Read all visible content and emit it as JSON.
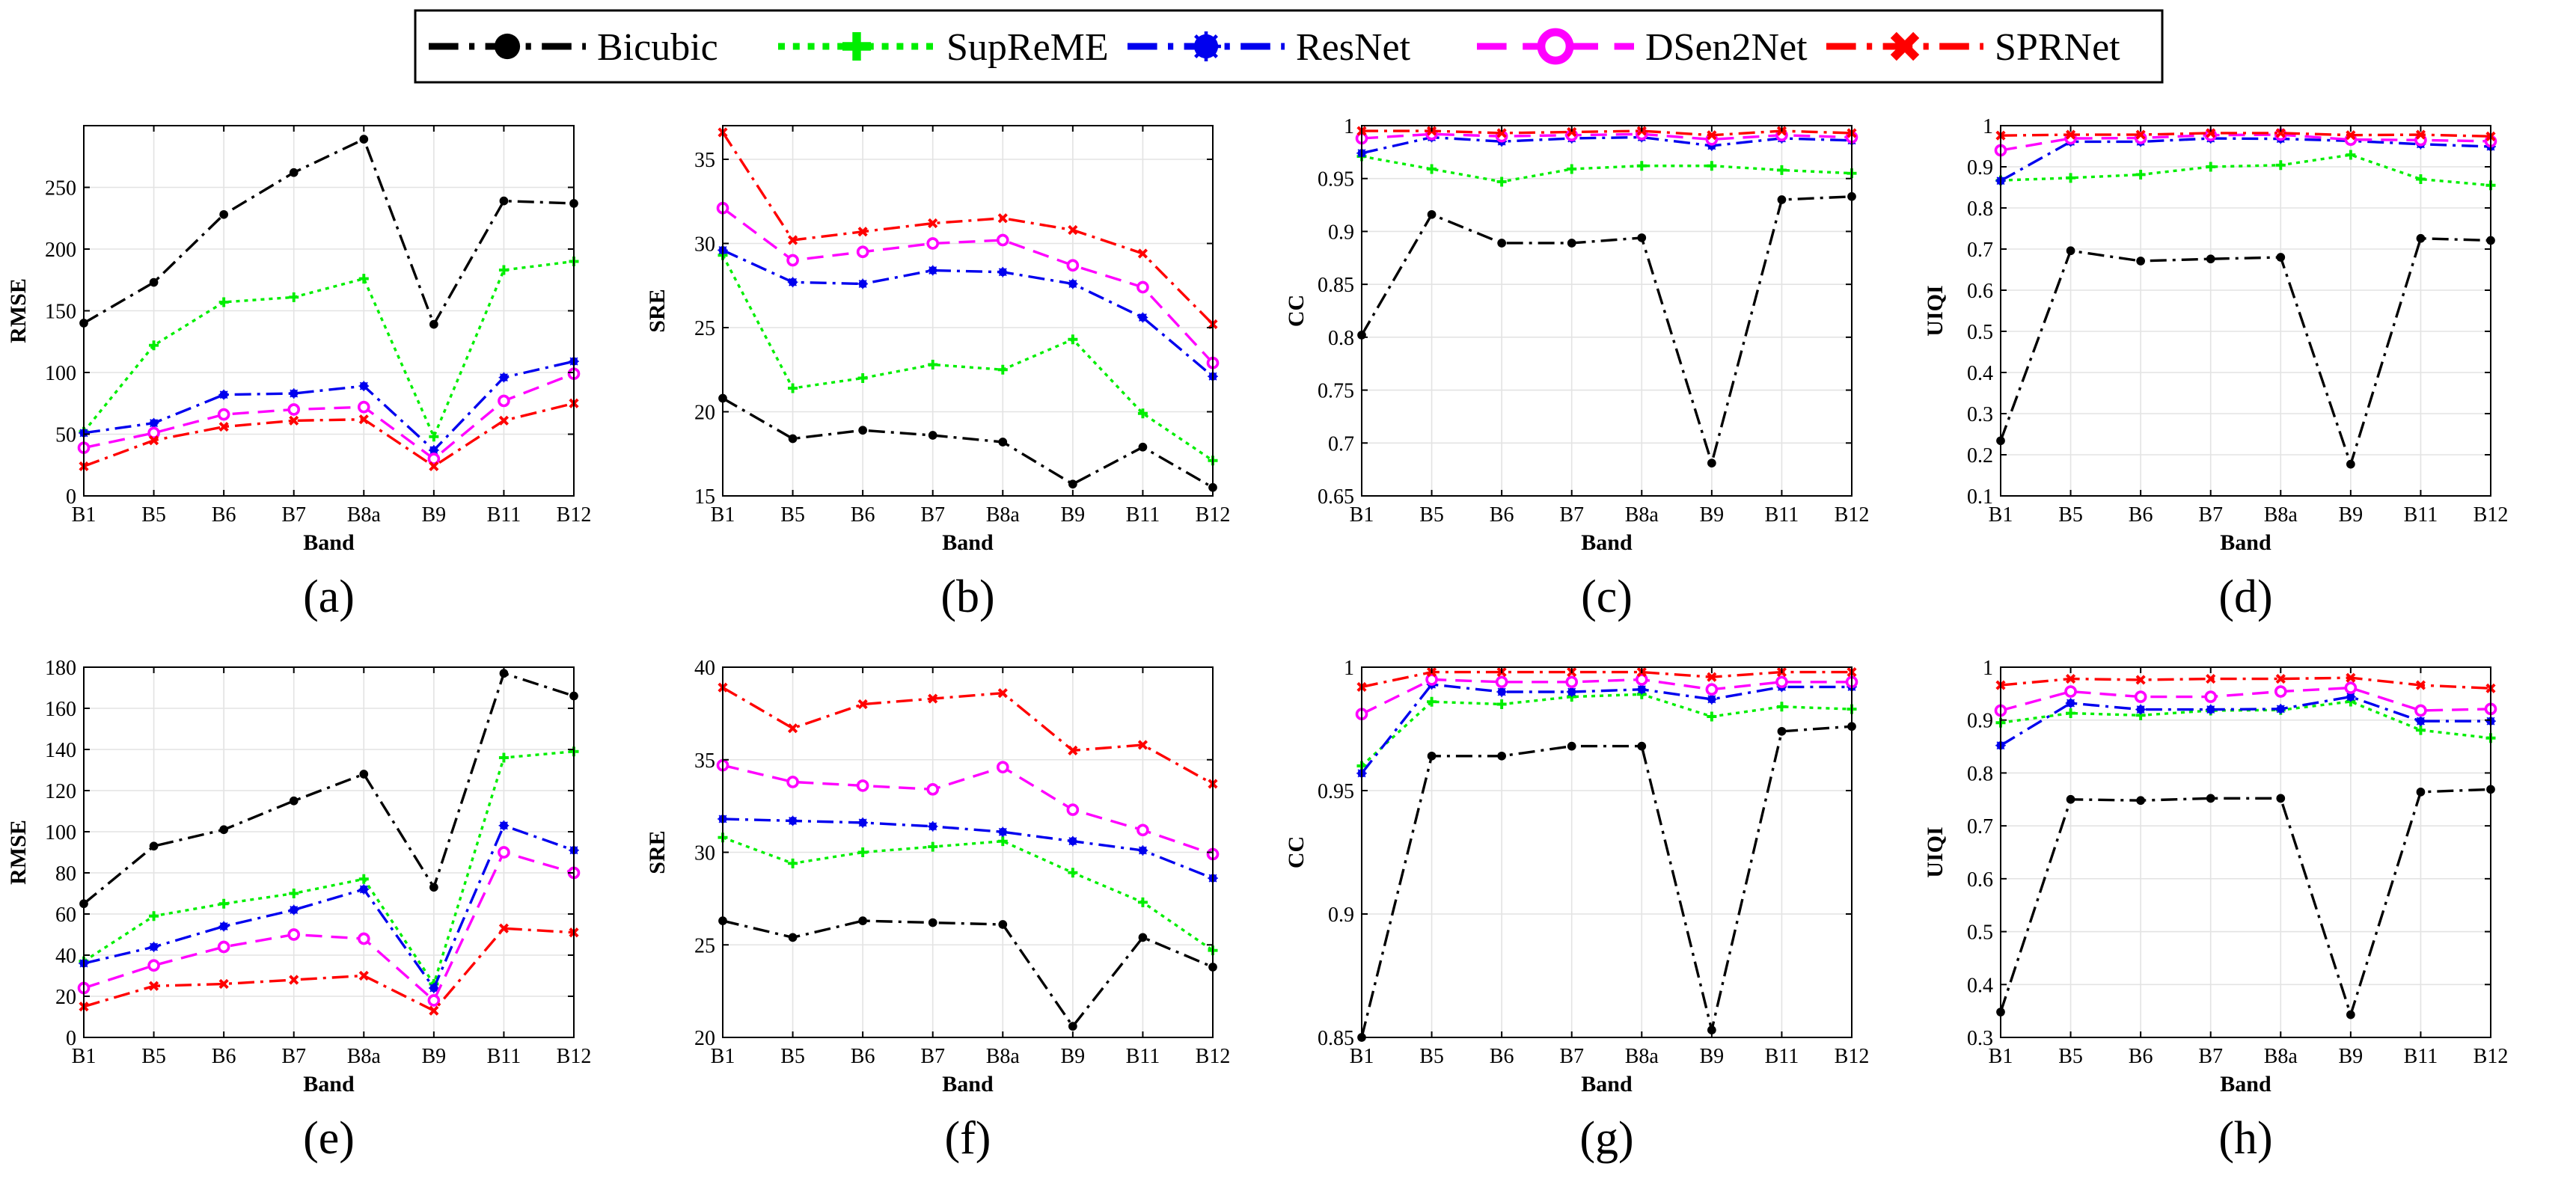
{
  "legend": {
    "position": "top-center",
    "entries": [
      {
        "name": "Bicubic",
        "color": "#000000",
        "dash": "dash-dot",
        "marker": "filled-circle"
      },
      {
        "name": "SupReME",
        "color": "#00ee00",
        "dash": "dotted",
        "marker": "plus"
      },
      {
        "name": "ResNet",
        "color": "#0000ee",
        "dash": "dash-dot",
        "marker": "asterisk-circle"
      },
      {
        "name": "DSen2Net",
        "color": "#ff00ff",
        "dash": "dashed",
        "marker": "open-circle"
      },
      {
        "name": "SPRNet",
        "color": "#ff0000",
        "dash": "dash-dot",
        "marker": "x"
      }
    ]
  },
  "chart_data": [
    {
      "panel": "(a)",
      "type": "line",
      "xlabel": "Band",
      "ylabel": "RMSE",
      "categories": [
        "B1",
        "B5",
        "B6",
        "B7",
        "B8a",
        "B9",
        "B11",
        "B12"
      ],
      "ylim": [
        0,
        300
      ],
      "yticks": [
        0,
        50,
        100,
        150,
        200,
        250
      ],
      "ytick_labels": [
        "0",
        "50",
        "100",
        "150",
        "200",
        "250"
      ],
      "grid": true,
      "series": [
        {
          "name": "Bicubic",
          "values": [
            140,
            173,
            228,
            262,
            289,
            139,
            239,
            237
          ]
        },
        {
          "name": "SupReME",
          "values": [
            52,
            122,
            157,
            161,
            176,
            48,
            183,
            190
          ]
        },
        {
          "name": "ResNet",
          "values": [
            51,
            59,
            82,
            83,
            89,
            37,
            96,
            109
          ]
        },
        {
          "name": "DSen2Net",
          "values": [
            39,
            51,
            66,
            70,
            72,
            30,
            77,
            99
          ]
        },
        {
          "name": "SPRNet",
          "values": [
            24,
            45,
            56,
            61,
            62,
            24,
            61,
            75
          ]
        }
      ]
    },
    {
      "panel": "(b)",
      "type": "line",
      "xlabel": "Band",
      "ylabel": "SRE",
      "categories": [
        "B1",
        "B5",
        "B6",
        "B7",
        "B8a",
        "B9",
        "B11",
        "B12"
      ],
      "ylim": [
        15,
        37
      ],
      "yticks": [
        15,
        20,
        25,
        30,
        35
      ],
      "ytick_labels": [
        "15",
        "20",
        "25",
        "30",
        "35"
      ],
      "grid": true,
      "series": [
        {
          "name": "Bicubic",
          "values": [
            20.8,
            18.4,
            18.9,
            18.6,
            18.2,
            15.7,
            17.9,
            15.5
          ]
        },
        {
          "name": "SupReME",
          "values": [
            29.3,
            21.4,
            22.0,
            22.8,
            22.5,
            24.3,
            19.9,
            17.1
          ]
        },
        {
          "name": "ResNet",
          "values": [
            29.6,
            27.7,
            27.6,
            28.4,
            28.3,
            27.6,
            25.6,
            22.1
          ]
        },
        {
          "name": "DSen2Net",
          "values": [
            32.1,
            29.0,
            29.5,
            30.0,
            30.2,
            28.7,
            27.4,
            22.9
          ]
        },
        {
          "name": "SPRNet",
          "values": [
            36.6,
            30.2,
            30.7,
            31.2,
            31.5,
            30.8,
            29.4,
            25.2
          ]
        }
      ]
    },
    {
      "panel": "(c)",
      "type": "line",
      "xlabel": "Band",
      "ylabel": "CC",
      "categories": [
        "B1",
        "B5",
        "B6",
        "B7",
        "B8a",
        "B9",
        "B11",
        "B12"
      ],
      "ylim": [
        0.65,
        1.0
      ],
      "yticks": [
        0.65,
        0.7,
        0.75,
        0.8,
        0.85,
        0.9,
        0.95,
        1.0
      ],
      "ytick_labels": [
        "0.65",
        "0.7",
        "0.75",
        "0.8",
        "0.85",
        "0.9",
        "0.95",
        "1"
      ],
      "grid": true,
      "series": [
        {
          "name": "Bicubic",
          "values": [
            0.802,
            0.916,
            0.889,
            0.889,
            0.894,
            0.681,
            0.93,
            0.933
          ]
        },
        {
          "name": "SupReME",
          "values": [
            0.971,
            0.959,
            0.947,
            0.959,
            0.962,
            0.962,
            0.958,
            0.955
          ]
        },
        {
          "name": "ResNet",
          "values": [
            0.974,
            0.989,
            0.985,
            0.988,
            0.989,
            0.981,
            0.988,
            0.986
          ]
        },
        {
          "name": "DSen2Net",
          "values": [
            0.988,
            0.992,
            0.99,
            0.991,
            0.992,
            0.987,
            0.991,
            0.989
          ]
        },
        {
          "name": "SPRNet",
          "values": [
            0.995,
            0.995,
            0.993,
            0.994,
            0.995,
            0.991,
            0.995,
            0.993
          ]
        }
      ]
    },
    {
      "panel": "(d)",
      "type": "line",
      "xlabel": "Band",
      "ylabel": "UIQI",
      "categories": [
        "B1",
        "B5",
        "B6",
        "B7",
        "B8a",
        "B9",
        "B11",
        "B12"
      ],
      "ylim": [
        0.1,
        1.0
      ],
      "yticks": [
        0.1,
        0.2,
        0.3,
        0.4,
        0.5,
        0.6,
        0.7,
        0.8,
        0.9,
        1.0
      ],
      "ytick_labels": [
        "0.1",
        "0.2",
        "0.3",
        "0.4",
        "0.5",
        "0.6",
        "0.7",
        "0.8",
        "0.9",
        "1"
      ],
      "grid": true,
      "series": [
        {
          "name": "Bicubic",
          "values": [
            0.234,
            0.696,
            0.671,
            0.676,
            0.68,
            0.177,
            0.726,
            0.721
          ]
        },
        {
          "name": "SupReME",
          "values": [
            0.867,
            0.873,
            0.881,
            0.9,
            0.904,
            0.929,
            0.87,
            0.855
          ]
        },
        {
          "name": "ResNet",
          "values": [
            0.866,
            0.961,
            0.961,
            0.969,
            0.968,
            0.963,
            0.955,
            0.949
          ]
        },
        {
          "name": "DSen2Net",
          "values": [
            0.94,
            0.969,
            0.97,
            0.977,
            0.978,
            0.966,
            0.965,
            0.962
          ]
        },
        {
          "name": "SPRNet",
          "values": [
            0.976,
            0.978,
            0.978,
            0.982,
            0.982,
            0.977,
            0.978,
            0.974
          ]
        }
      ]
    },
    {
      "panel": "(e)",
      "type": "line",
      "xlabel": "Band",
      "ylabel": "RMSE",
      "categories": [
        "B1",
        "B5",
        "B6",
        "B7",
        "B8a",
        "B9",
        "B11",
        "B12"
      ],
      "ylim": [
        0,
        180
      ],
      "yticks": [
        0,
        20,
        40,
        60,
        80,
        100,
        120,
        140,
        160,
        180
      ],
      "ytick_labels": [
        "0",
        "20",
        "40",
        "60",
        "80",
        "100",
        "120",
        "140",
        "160",
        "180"
      ],
      "grid": true,
      "series": [
        {
          "name": "Bicubic",
          "values": [
            65,
            93,
            101,
            115,
            128,
            73,
            177,
            166
          ]
        },
        {
          "name": "SupReME",
          "values": [
            37,
            59,
            65,
            70,
            77,
            26,
            136,
            139
          ]
        },
        {
          "name": "ResNet",
          "values": [
            36,
            44,
            54,
            62,
            72,
            24,
            103,
            91
          ]
        },
        {
          "name": "DSen2Net",
          "values": [
            24,
            35,
            44,
            50,
            48,
            18,
            90,
            80
          ]
        },
        {
          "name": "SPRNet",
          "values": [
            15,
            25,
            26,
            28,
            30,
            13,
            53,
            51
          ]
        }
      ]
    },
    {
      "panel": "(f)",
      "type": "line",
      "xlabel": "Band",
      "ylabel": "SRE",
      "categories": [
        "B1",
        "B5",
        "B6",
        "B7",
        "B8a",
        "B9",
        "B11",
        "B12"
      ],
      "ylim": [
        20,
        40
      ],
      "yticks": [
        20,
        25,
        30,
        35,
        40
      ],
      "ytick_labels": [
        "20",
        "25",
        "30",
        "35",
        "40"
      ],
      "grid": true,
      "series": [
        {
          "name": "Bicubic",
          "values": [
            26.3,
            25.4,
            26.3,
            26.2,
            26.1,
            20.6,
            25.4,
            23.8
          ]
        },
        {
          "name": "SupReME",
          "values": [
            30.8,
            29.4,
            30.0,
            30.3,
            30.6,
            28.9,
            27.3,
            24.7
          ]
        },
        {
          "name": "ResNet",
          "values": [
            31.8,
            31.7,
            31.6,
            31.4,
            31.1,
            30.6,
            30.1,
            28.6
          ]
        },
        {
          "name": "DSen2Net",
          "values": [
            34.7,
            33.8,
            33.6,
            33.4,
            34.6,
            32.3,
            31.2,
            29.9
          ]
        },
        {
          "name": "SPRNet",
          "values": [
            38.9,
            36.7,
            38.0,
            38.3,
            38.6,
            35.5,
            35.8,
            33.7
          ]
        }
      ]
    },
    {
      "panel": "(g)",
      "type": "line",
      "xlabel": "Band",
      "ylabel": "CC",
      "categories": [
        "B1",
        "B5",
        "B6",
        "B7",
        "B8a",
        "B9",
        "B11",
        "B12"
      ],
      "ylim": [
        0.85,
        1.0
      ],
      "yticks": [
        0.85,
        0.9,
        0.95,
        1.0
      ],
      "ytick_labels": [
        "0.85",
        "0.9",
        "0.95",
        "1"
      ],
      "grid": true,
      "series": [
        {
          "name": "Bicubic",
          "values": [
            0.85,
            0.964,
            0.964,
            0.968,
            0.968,
            0.853,
            0.974,
            0.976
          ]
        },
        {
          "name": "SupReME",
          "values": [
            0.96,
            0.986,
            0.985,
            0.988,
            0.989,
            0.98,
            0.984,
            0.983
          ]
        },
        {
          "name": "ResNet",
          "values": [
            0.957,
            0.993,
            0.99,
            0.99,
            0.991,
            0.987,
            0.992,
            0.992
          ]
        },
        {
          "name": "DSen2Net",
          "values": [
            0.981,
            0.995,
            0.994,
            0.994,
            0.995,
            0.991,
            0.994,
            0.994
          ]
        },
        {
          "name": "SPRNet",
          "values": [
            0.992,
            0.998,
            0.998,
            0.998,
            0.998,
            0.996,
            0.998,
            0.998
          ]
        }
      ]
    },
    {
      "panel": "(h)",
      "type": "line",
      "xlabel": "Band",
      "ylabel": "UIQI",
      "categories": [
        "B1",
        "B5",
        "B6",
        "B7",
        "B8a",
        "B9",
        "B11",
        "B12"
      ],
      "ylim": [
        0.3,
        1.0
      ],
      "yticks": [
        0.3,
        0.4,
        0.5,
        0.6,
        0.7,
        0.8,
        0.9,
        1.0
      ],
      "ytick_labels": [
        "0.3",
        "0.4",
        "0.5",
        "0.6",
        "0.7",
        "0.8",
        "0.9",
        "1"
      ],
      "grid": true,
      "series": [
        {
          "name": "Bicubic",
          "values": [
            0.348,
            0.75,
            0.748,
            0.752,
            0.752,
            0.343,
            0.764,
            0.769
          ]
        },
        {
          "name": "SupReME",
          "values": [
            0.895,
            0.913,
            0.909,
            0.918,
            0.919,
            0.935,
            0.881,
            0.866
          ]
        },
        {
          "name": "ResNet",
          "values": [
            0.852,
            0.932,
            0.92,
            0.92,
            0.921,
            0.944,
            0.898,
            0.898
          ]
        },
        {
          "name": "DSen2Net",
          "values": [
            0.918,
            0.954,
            0.944,
            0.944,
            0.954,
            0.961,
            0.918,
            0.921
          ]
        },
        {
          "name": "SPRNet",
          "values": [
            0.966,
            0.978,
            0.976,
            0.978,
            0.978,
            0.98,
            0.966,
            0.96
          ]
        }
      ]
    }
  ]
}
